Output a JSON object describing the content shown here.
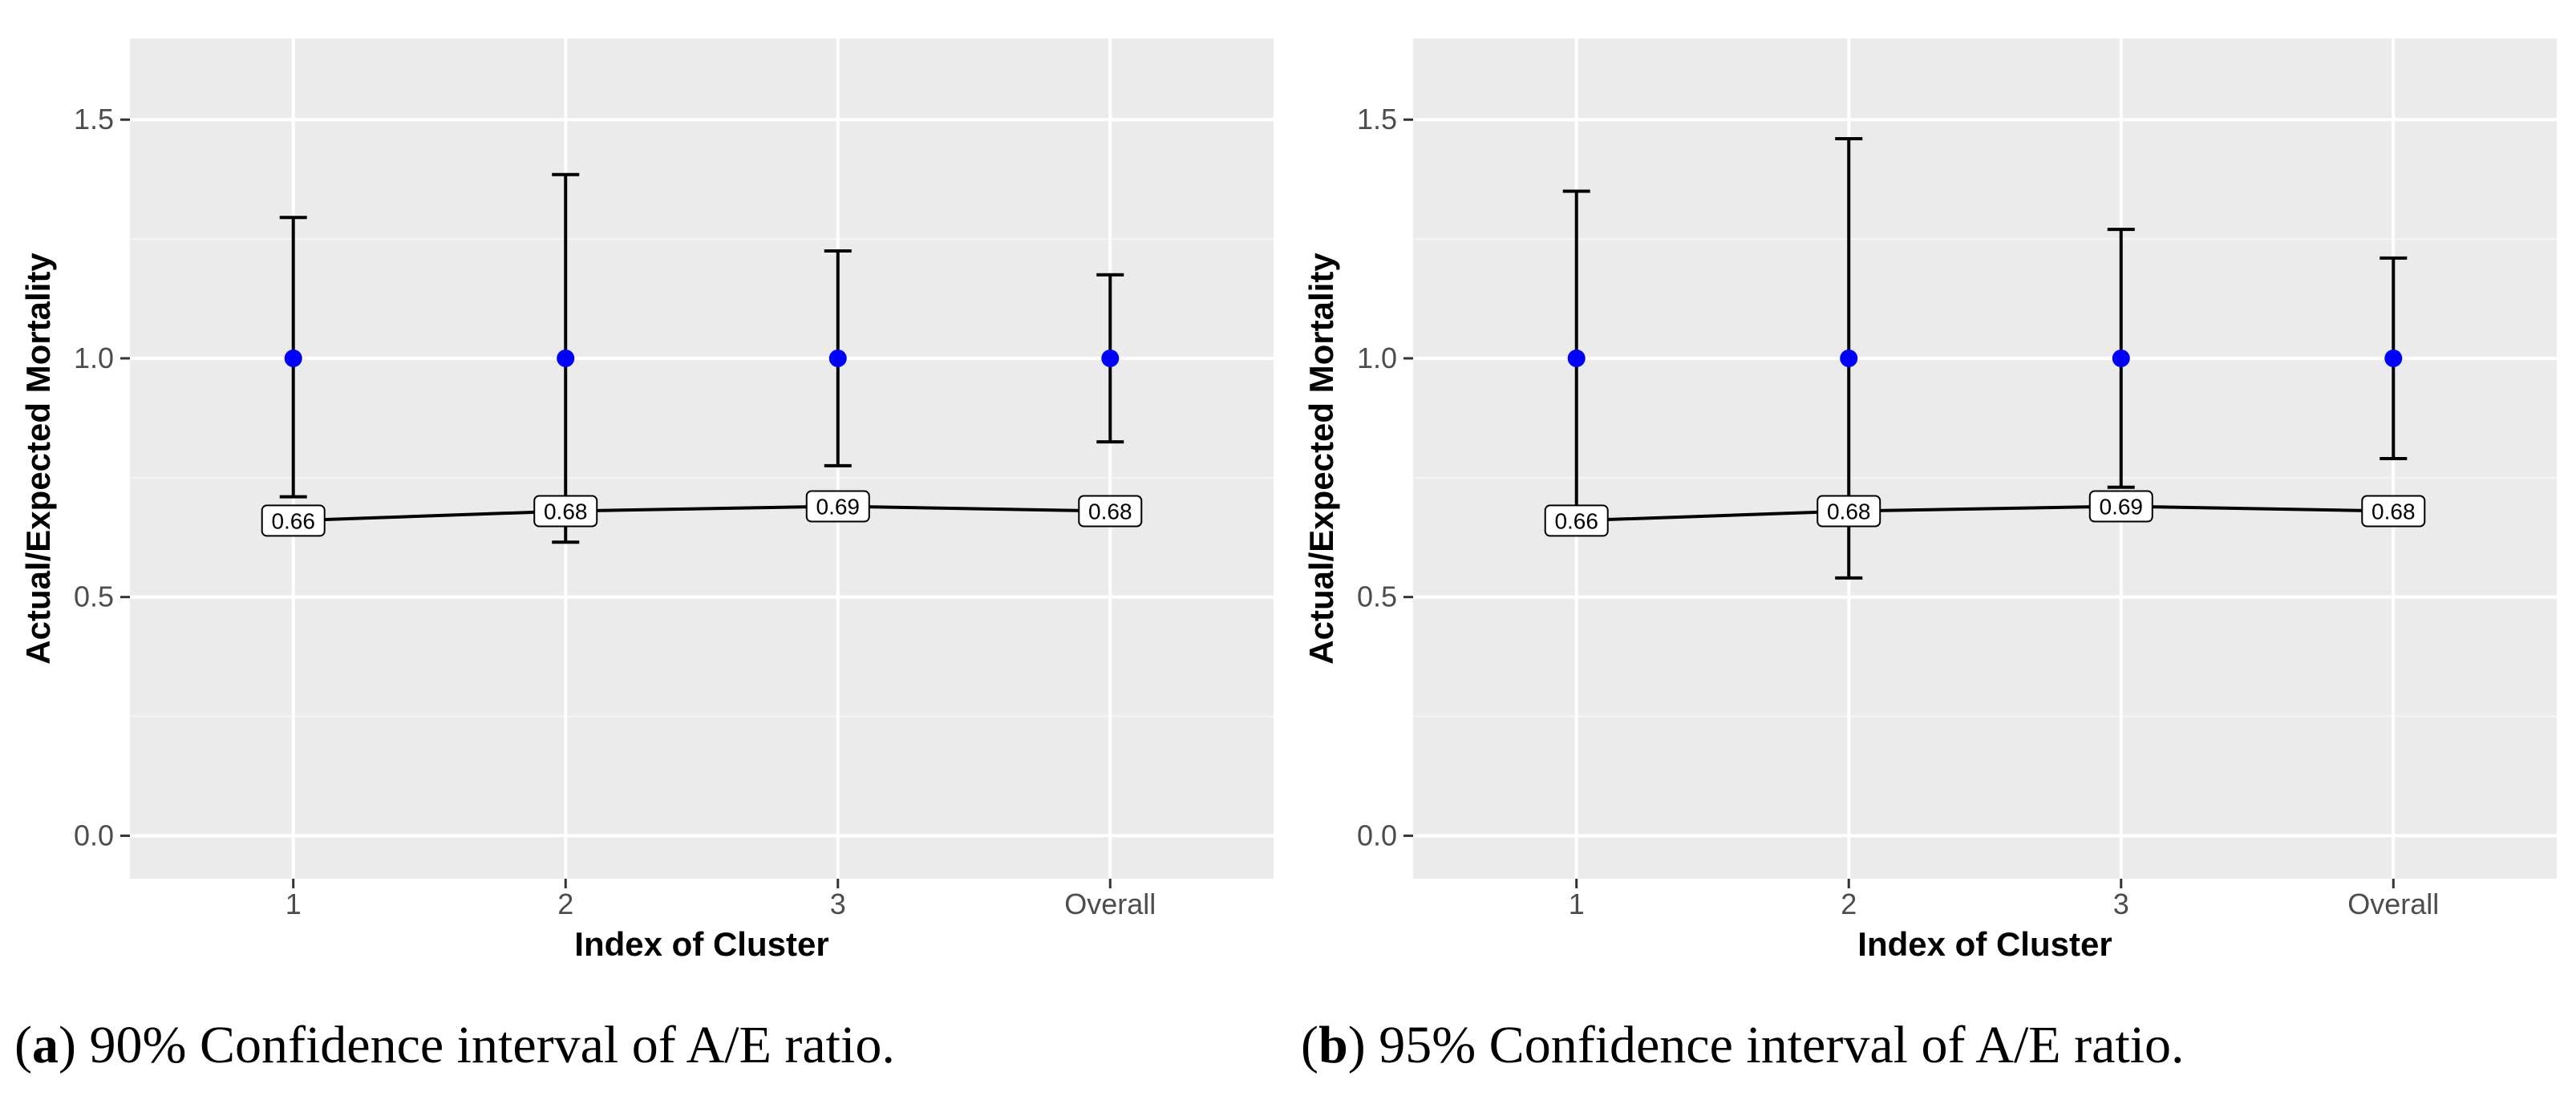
{
  "chart_data": [
    {
      "type": "scatter",
      "panel": "a",
      "caption": {
        "letter": "a",
        "open": "(",
        "close": ")",
        "text": " 90% Confidence interval of A/E ratio."
      },
      "xlabel": "Index of Cluster",
      "ylabel": "Actual/Expected Mortality",
      "categories": [
        "1",
        "2",
        "3",
        "Overall"
      ],
      "ylim": [
        -0.09,
        1.67
      ],
      "yticks": [
        0.0,
        0.5,
        1.0,
        1.5
      ],
      "ytick_labels": [
        "0.0",
        "0.5",
        "1.0",
        "1.5"
      ],
      "grid": true,
      "series": [
        {
          "name": "A/E ratio",
          "color": "#0000ff",
          "values": [
            1.0,
            1.0,
            1.0,
            1.0
          ],
          "ci_lower": [
            0.71,
            0.615,
            0.775,
            0.825
          ],
          "ci_upper": [
            1.295,
            1.385,
            1.225,
            1.175
          ]
        },
        {
          "name": "line",
          "color": "#000000",
          "values": [
            0.66,
            0.68,
            0.69,
            0.68
          ],
          "labels": [
            "0.66",
            "0.68",
            "0.69",
            "0.68"
          ]
        }
      ]
    },
    {
      "type": "scatter",
      "panel": "b",
      "caption": {
        "letter": "b",
        "open": "(",
        "close": ")",
        "text": " 95% Confidence interval of A/E ratio."
      },
      "xlabel": "Index of Cluster",
      "ylabel": "Actual/Expected Mortality",
      "categories": [
        "1",
        "2",
        "3",
        "Overall"
      ],
      "ylim": [
        -0.09,
        1.67
      ],
      "yticks": [
        0.0,
        0.5,
        1.0,
        1.5
      ],
      "ytick_labels": [
        "0.0",
        "0.5",
        "1.0",
        "1.5"
      ],
      "grid": true,
      "series": [
        {
          "name": "A/E ratio",
          "color": "#0000ff",
          "values": [
            1.0,
            1.0,
            1.0,
            1.0
          ],
          "ci_lower": [
            0.66,
            0.54,
            0.73,
            0.79
          ],
          "ci_upper": [
            1.35,
            1.46,
            1.27,
            1.21
          ]
        },
        {
          "name": "line",
          "color": "#000000",
          "values": [
            0.66,
            0.68,
            0.69,
            0.68
          ],
          "labels": [
            "0.66",
            "0.68",
            "0.69",
            "0.68"
          ]
        }
      ]
    }
  ],
  "colors": {
    "panel_bg": "#ebebeb",
    "grid_major": "#ffffff",
    "grid_minor": "#f4f4f4",
    "tick_text": "#4d4d4d",
    "point": "#0000ff",
    "line": "#000000"
  }
}
